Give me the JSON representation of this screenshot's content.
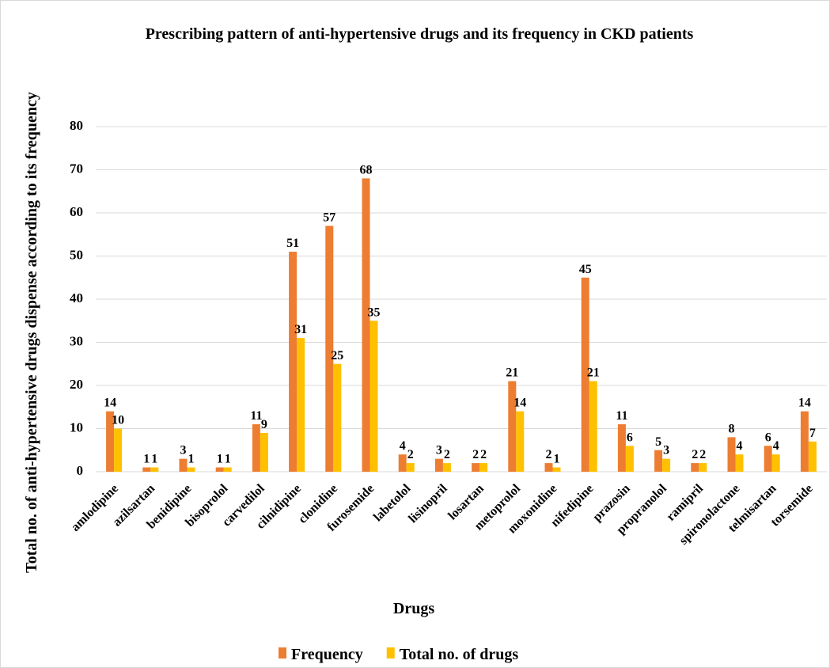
{
  "chart_data": {
    "type": "bar",
    "title": "Prescribing pattern of anti-hypertensive drugs and its frequency in CKD patients",
    "x_label": "Drugs",
    "y_label": "Total no. of anti-hypertensive drugs dispense according to its frequency",
    "categories": [
      "amlodipine",
      "azilsartan",
      "benidipine",
      "bisoprolol",
      "carvedilol",
      "cilnidipine",
      "clonidine",
      "furosemide",
      "labetolol",
      "lisinopril",
      "losartan",
      "metoprolol",
      "moxonidine",
      "nifedipine",
      "prazosin",
      "propranolol",
      "ramipril",
      "spironolactone",
      "telmisartan",
      "torsemide"
    ],
    "series": [
      {
        "name": "Frequency",
        "color": "#ED7D31",
        "values": [
          14,
          1,
          3,
          1,
          11,
          51,
          57,
          68,
          4,
          3,
          2,
          21,
          2,
          45,
          11,
          5,
          2,
          8,
          6,
          14
        ]
      },
      {
        "name": "Total no. of drugs",
        "color": "#FFC000",
        "values": [
          10,
          1,
          1,
          1,
          9,
          31,
          25,
          35,
          2,
          2,
          2,
          14,
          1,
          21,
          6,
          3,
          2,
          4,
          4,
          7
        ]
      }
    ],
    "ylim": [
      0,
      80
    ],
    "yticks": [
      0,
      10,
      20,
      30,
      40,
      50,
      60,
      70,
      80
    ],
    "grid": true,
    "legend": "bottom"
  }
}
